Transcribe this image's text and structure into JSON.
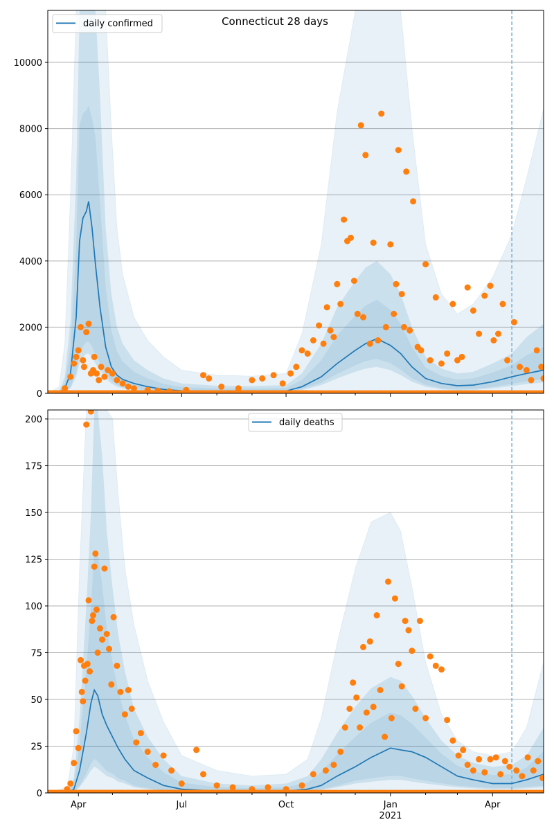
{
  "chart_data": [
    {
      "type": "line",
      "title": "Connecticut 28 days",
      "legend": {
        "label": "daily confirmed",
        "placement": "top-left"
      },
      "xlabel": "",
      "ylabel": "",
      "ylim": [
        0,
        11570
      ],
      "yticks": [
        0,
        2000,
        4000,
        6000,
        8000,
        10000
      ],
      "ytick_labels": [
        "0",
        "2000",
        "4000",
        "6000",
        "8000",
        "10000"
      ],
      "grid": "y",
      "forecast_date": "2021-04-18",
      "line_color": "#1f77b4",
      "dot_color": "#ff7f0e",
      "band_color": "#1f77b4",
      "line": {
        "x": [
          "2020-03-05",
          "2020-03-15",
          "2020-03-20",
          "2020-03-25",
          "2020-03-30",
          "2020-04-02",
          "2020-04-05",
          "2020-04-08",
          "2020-04-10",
          "2020-04-13",
          "2020-04-16",
          "2020-04-20",
          "2020-04-25",
          "2020-04-30",
          "2020-05-05",
          "2020-05-10",
          "2020-05-20",
          "2020-06-01",
          "2020-06-15",
          "2020-07-01",
          "2020-08-01",
          "2020-09-01",
          "2020-10-01",
          "2020-10-15",
          "2020-11-01",
          "2020-11-15",
          "2020-12-01",
          "2020-12-10",
          "2020-12-20",
          "2021-01-01",
          "2021-01-10",
          "2021-01-20",
          "2021-02-01",
          "2021-02-15",
          "2021-03-01",
          "2021-03-15",
          "2021-04-01",
          "2021-04-18",
          "2021-05-01",
          "2021-05-16"
        ],
        "y": [
          0,
          20,
          150,
          600,
          2300,
          4600,
          5300,
          5500,
          5800,
          5000,
          3900,
          2600,
          1400,
          800,
          550,
          420,
          300,
          200,
          120,
          80,
          60,
          60,
          70,
          200,
          500,
          900,
          1300,
          1500,
          1650,
          1450,
          1200,
          800,
          450,
          300,
          230,
          250,
          350,
          500,
          600,
          700
        ]
      },
      "band_inner": {
        "lower": [
          0,
          10,
          40,
          150,
          500,
          900,
          1100,
          1200,
          1200,
          1100,
          900,
          700,
          450,
          300,
          200,
          150,
          100,
          70,
          50,
          40,
          30,
          30,
          40,
          100,
          250,
          450,
          650,
          750,
          800,
          700,
          550,
          350,
          200,
          120,
          90,
          100,
          150,
          220,
          280,
          330
        ],
        "upper": [
          0,
          80,
          500,
          2200,
          6500,
          11600,
          11600,
          11600,
          11600,
          11600,
          11600,
          9000,
          5000,
          3000,
          2000,
          1500,
          1000,
          700,
          450,
          300,
          230,
          220,
          250,
          600,
          1500,
          2600,
          3400,
          3800,
          4000,
          3600,
          3000,
          2000,
          1100,
          750,
          600,
          650,
          900,
          1200,
          1700,
          2100
        ]
      },
      "band_outer": {
        "upper": [
          0,
          200,
          1500,
          6000,
          11600,
          11600,
          11600,
          11600,
          11600,
          11600,
          11600,
          11600,
          11600,
          8000,
          5000,
          3600,
          2300,
          1600,
          1100,
          700,
          550,
          520,
          600,
          1800,
          4500,
          8500,
          11600,
          11600,
          11600,
          11600,
          11600,
          8000,
          4500,
          3000,
          2400,
          2700,
          3500,
          4800,
          6500,
          8600
        ]
      },
      "points": {
        "x": [
          "2020-03-20",
          "2020-03-25",
          "2020-03-28",
          "2020-03-30",
          "2020-04-01",
          "2020-04-03",
          "2020-04-05",
          "2020-04-06",
          "2020-04-08",
          "2020-04-10",
          "2020-04-12",
          "2020-04-14",
          "2020-04-15",
          "2020-04-17",
          "2020-04-19",
          "2020-04-21",
          "2020-04-24",
          "2020-04-27",
          "2020-05-01",
          "2020-05-05",
          "2020-05-10",
          "2020-05-15",
          "2020-05-20",
          "2020-06-01",
          "2020-06-10",
          "2020-06-20",
          "2020-07-05",
          "2020-07-20",
          "2020-07-25",
          "2020-08-05",
          "2020-08-20",
          "2020-09-01",
          "2020-09-10",
          "2020-09-20",
          "2020-09-28",
          "2020-10-05",
          "2020-10-10",
          "2020-10-15",
          "2020-10-20",
          "2020-10-25",
          "2020-10-30",
          "2020-11-03",
          "2020-11-06",
          "2020-11-09",
          "2020-11-12",
          "2020-11-15",
          "2020-11-18",
          "2020-11-21",
          "2020-11-24",
          "2020-11-27",
          "2020-11-30",
          "2020-12-03",
          "2020-12-06",
          "2020-12-08",
          "2020-12-10",
          "2020-12-14",
          "2020-12-17",
          "2020-12-21",
          "2020-12-24",
          "2020-12-28",
          "2021-01-01",
          "2021-01-04",
          "2021-01-06",
          "2021-01-08",
          "2021-01-11",
          "2021-01-13",
          "2021-01-15",
          "2021-01-18",
          "2021-01-21",
          "2021-01-25",
          "2021-01-28",
          "2021-02-01",
          "2021-02-05",
          "2021-02-10",
          "2021-02-15",
          "2021-02-20",
          "2021-02-25",
          "2021-03-01",
          "2021-03-05",
          "2021-03-10",
          "2021-03-15",
          "2021-03-20",
          "2021-03-25",
          "2021-03-30",
          "2021-04-02",
          "2021-04-06",
          "2021-04-10",
          "2021-04-14",
          "2021-04-20",
          "2021-04-25",
          "2021-05-01",
          "2021-05-05",
          "2021-05-10",
          "2021-05-14",
          "2021-05-16"
        ],
        "y": [
          150,
          500,
          900,
          1100,
          1300,
          2000,
          1000,
          800,
          1850,
          2100,
          600,
          700,
          1100,
          600,
          400,
          800,
          500,
          700,
          600,
          400,
          300,
          200,
          150,
          100,
          80,
          60,
          100,
          550,
          450,
          200,
          150,
          400,
          450,
          550,
          300,
          600,
          800,
          1300,
          1200,
          1600,
          2050,
          1500,
          2600,
          1900,
          1700,
          3300,
          2700,
          5250,
          4600,
          4700,
          3400,
          2400,
          8100,
          2300,
          7200,
          1500,
          4550,
          1600,
          8450,
          2000,
          4500,
          2400,
          3300,
          7350,
          3000,
          2000,
          6700,
          1900,
          5800,
          1400,
          1300,
          3900,
          1000,
          2900,
          900,
          1200,
          2700,
          1000,
          1100,
          3200,
          2500,
          1800,
          2950,
          3250,
          1600,
          1800,
          2700,
          1000,
          2150,
          800,
          700,
          400,
          1300,
          800,
          450
        ]
      },
      "zero_points_start": "2020-10-20",
      "x_ticks": [
        "Apr",
        "Jul",
        "Oct",
        "Jan",
        "Apr"
      ],
      "x_tick_dates": [
        "2020-04-01",
        "2020-07-01",
        "2020-10-01",
        "2021-01-01",
        "2021-04-01"
      ],
      "x_year_label": "2021",
      "xlim": [
        "2020-03-05",
        "2021-05-16"
      ]
    },
    {
      "type": "line",
      "title": "",
      "legend": {
        "label": "daily deaths",
        "placement": "top-center"
      },
      "xlabel": "",
      "ylabel": "",
      "ylim": [
        0,
        204.8
      ],
      "yticks": [
        0,
        25,
        50,
        75,
        100,
        125,
        150,
        175,
        200
      ],
      "ytick_labels": [
        "0",
        "25",
        "50",
        "75",
        "100",
        "125",
        "150",
        "175",
        "200"
      ],
      "grid": "y",
      "forecast_date": "2021-04-18",
      "line": {
        "x": [
          "2020-03-05",
          "2020-03-22",
          "2020-03-28",
          "2020-04-02",
          "2020-04-08",
          "2020-04-12",
          "2020-04-15",
          "2020-04-18",
          "2020-04-22",
          "2020-04-26",
          "2020-05-01",
          "2020-05-06",
          "2020-05-12",
          "2020-05-20",
          "2020-06-01",
          "2020-06-15",
          "2020-07-01",
          "2020-08-01",
          "2020-09-01",
          "2020-10-01",
          "2020-10-20",
          "2020-11-01",
          "2020-11-15",
          "2020-12-01",
          "2020-12-15",
          "2021-01-01",
          "2021-01-10",
          "2021-01-20",
          "2021-02-01",
          "2021-02-15",
          "2021-03-01",
          "2021-03-15",
          "2021-04-01",
          "2021-04-18",
          "2021-05-01",
          "2021-05-16"
        ],
        "y": [
          0,
          0,
          2,
          12,
          32,
          48,
          55,
          52,
          42,
          36,
          30,
          24,
          18,
          12,
          8,
          4,
          2,
          1,
          1,
          1,
          2,
          4,
          9,
          14,
          19,
          24,
          23,
          22,
          19,
          14,
          9,
          7,
          5,
          5,
          7,
          10
        ]
      },
      "band_inner": {
        "lower": [
          0,
          0,
          0.5,
          3,
          8,
          12,
          14,
          13,
          11,
          9,
          8,
          6,
          5,
          3,
          2,
          1,
          0.5,
          0.3,
          0.3,
          0.3,
          0.7,
          1.5,
          3,
          5,
          6,
          7,
          7,
          6,
          5,
          4,
          3,
          2.5,
          2,
          2,
          2.5,
          3
        ],
        "upper": [
          0,
          1,
          8,
          40,
          100,
          150,
          205,
          205,
          180,
          140,
          110,
          85,
          65,
          45,
          30,
          18,
          9,
          5,
          4,
          5,
          9,
          18,
          32,
          46,
          56,
          62,
          60,
          52,
          40,
          28,
          20,
          16,
          14,
          15,
          20,
          35
        ]
      },
      "band_outer": {
        "upper": [
          0,
          3,
          25,
          120,
          205,
          205,
          205,
          205,
          205,
          205,
          200,
          160,
          120,
          90,
          60,
          38,
          20,
          12,
          9,
          10,
          18,
          40,
          80,
          120,
          145,
          150,
          140,
          110,
          70,
          42,
          28,
          22,
          20,
          22,
          35,
          70
        ]
      },
      "points": {
        "x": [
          "2020-03-22",
          "2020-03-25",
          "2020-03-28",
          "2020-03-30",
          "2020-04-01",
          "2020-04-03",
          "2020-04-04",
          "2020-04-05",
          "2020-04-06",
          "2020-04-07",
          "2020-04-08",
          "2020-04-09",
          "2020-04-10",
          "2020-04-11",
          "2020-04-12",
          "2020-04-13",
          "2020-04-14",
          "2020-04-15",
          "2020-04-16",
          "2020-04-17",
          "2020-04-18",
          "2020-04-20",
          "2020-04-22",
          "2020-04-24",
          "2020-04-26",
          "2020-04-28",
          "2020-04-30",
          "2020-05-02",
          "2020-05-05",
          "2020-05-08",
          "2020-05-12",
          "2020-05-15",
          "2020-05-18",
          "2020-05-22",
          "2020-05-26",
          "2020-06-01",
          "2020-06-08",
          "2020-06-15",
          "2020-06-22",
          "2020-07-01",
          "2020-07-14",
          "2020-07-20",
          "2020-08-01",
          "2020-08-15",
          "2020-09-01",
          "2020-09-15",
          "2020-10-01",
          "2020-10-15",
          "2020-10-25",
          "2020-11-05",
          "2020-11-12",
          "2020-11-18",
          "2020-11-22",
          "2020-11-26",
          "2020-11-29",
          "2020-12-02",
          "2020-12-05",
          "2020-12-08",
          "2020-12-11",
          "2020-12-14",
          "2020-12-17",
          "2020-12-20",
          "2020-12-23",
          "2020-12-27",
          "2020-12-30",
          "2021-01-02",
          "2021-01-05",
          "2021-01-08",
          "2021-01-11",
          "2021-01-14",
          "2021-01-17",
          "2021-01-20",
          "2021-01-23",
          "2021-01-27",
          "2021-02-01",
          "2021-02-05",
          "2021-02-10",
          "2021-02-15",
          "2021-02-20",
          "2021-02-25",
          "2021-03-02",
          "2021-03-06",
          "2021-03-10",
          "2021-03-15",
          "2021-03-20",
          "2021-03-25",
          "2021-03-30",
          "2021-04-04",
          "2021-04-08",
          "2021-04-12",
          "2021-04-16",
          "2021-04-22",
          "2021-04-27",
          "2021-05-02",
          "2021-05-07",
          "2021-05-11",
          "2021-05-15"
        ],
        "y": [
          2,
          5,
          16,
          33,
          24,
          71,
          54,
          49,
          68,
          60,
          197,
          69,
          103,
          65,
          204,
          92,
          95,
          121,
          128,
          98,
          75,
          88,
          82,
          120,
          85,
          77,
          58,
          94,
          68,
          54,
          42,
          55,
          45,
          27,
          32,
          22,
          15,
          20,
          12,
          5,
          23,
          10,
          4,
          3,
          2,
          3,
          2,
          4,
          10,
          12,
          15,
          22,
          35,
          45,
          59,
          51,
          35,
          78,
          43,
          81,
          46,
          95,
          55,
          30,
          113,
          40,
          104,
          69,
          57,
          92,
          87,
          76,
          45,
          92,
          40,
          73,
          68,
          66,
          39,
          28,
          20,
          23,
          15,
          12,
          18,
          11,
          18,
          19,
          10,
          17,
          14,
          12,
          9,
          19,
          12,
          17,
          8
        ]
      },
      "zero_points_start": "2020-10-20",
      "x_ticks": [
        "Apr",
        "Jul",
        "Oct",
        "Jan",
        "Apr"
      ],
      "x_tick_dates": [
        "2020-04-01",
        "2020-07-01",
        "2020-10-01",
        "2021-01-01",
        "2021-04-01"
      ],
      "x_year_label": "2021",
      "xlim": [
        "2020-03-05",
        "2021-05-16"
      ]
    }
  ]
}
